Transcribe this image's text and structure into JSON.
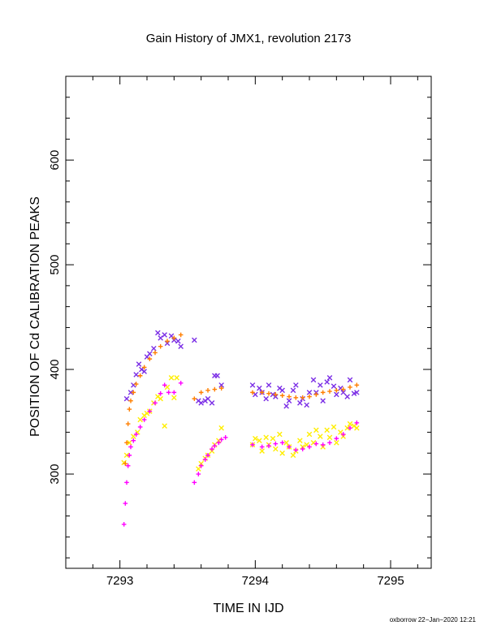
{
  "chart_data": {
    "type": "scatter",
    "title": "Gain History of JMX1, revolution 2173",
    "xlabel": "TIME IN IJD",
    "ylabel": "POSITION OF Cd CALIBRATION PEAKS",
    "xlim": [
      7292.6,
      7295.3
    ],
    "ylim": [
      210,
      680
    ],
    "x_ticks": [
      7293,
      7294,
      7295
    ],
    "y_ticks": [
      300,
      400,
      500,
      600
    ],
    "x_tick_labels": [
      "7293",
      "7294",
      "7295"
    ],
    "y_tick_labels": [
      "300",
      "400",
      "500",
      "600"
    ],
    "grid": false,
    "legend": "none",
    "series": [
      {
        "color": "#7b2ee6",
        "marker": "x",
        "x": [
          7293.05,
          7293.08,
          7293.1,
          7293.12,
          7293.14,
          7293.16,
          7293.18,
          7293.2,
          7293.22,
          7293.25,
          7293.28,
          7293.3,
          7293.33,
          7293.35,
          7293.38,
          7293.4,
          7293.43,
          7293.45,
          7293.55,
          7293.58,
          7293.6,
          7293.63,
          7293.65,
          7293.68,
          7293.7,
          7293.72,
          7293.75,
          7293.98,
          7294.0,
          7294.03,
          7294.05,
          7294.08,
          7294.1,
          7294.13,
          7294.15,
          7294.18,
          7294.2,
          7294.23,
          7294.25,
          7294.28,
          7294.3,
          7294.33,
          7294.35,
          7294.38,
          7294.4,
          7294.43,
          7294.45,
          7294.48,
          7294.5,
          7294.53,
          7294.55,
          7294.58,
          7294.6,
          7294.63,
          7294.65,
          7294.68,
          7294.7,
          7294.73,
          7294.75
        ],
        "y": [
          372,
          378,
          385,
          395,
          405,
          400,
          398,
          412,
          415,
          420,
          435,
          430,
          433,
          425,
          432,
          428,
          427,
          422,
          428,
          370,
          368,
          370,
          372,
          368,
          394,
          394,
          385,
          385,
          376,
          382,
          378,
          372,
          385,
          376,
          374,
          382,
          380,
          365,
          370,
          380,
          385,
          368,
          372,
          366,
          378,
          390,
          378,
          385,
          370,
          388,
          392,
          384,
          376,
          382,
          378,
          374,
          390,
          377,
          378
        ]
      },
      {
        "color": "#ffee00",
        "marker": "x",
        "x": [
          7293.03,
          7293.05,
          7293.07,
          7293.1,
          7293.13,
          7293.15,
          7293.18,
          7293.2,
          7293.22,
          7293.25,
          7293.28,
          7293.3,
          7293.33,
          7293.35,
          7293.38,
          7293.4,
          7293.42,
          7293.58,
          7293.6,
          7293.63,
          7293.65,
          7293.68,
          7293.7,
          7293.73,
          7293.75,
          7293.98,
          7294.0,
          7294.03,
          7294.05,
          7294.08,
          7294.1,
          7294.13,
          7294.15,
          7294.18,
          7294.2,
          7294.23,
          7294.25,
          7294.28,
          7294.3,
          7294.33,
          7294.35,
          7294.38,
          7294.4,
          7294.43,
          7294.45,
          7294.48,
          7294.5,
          7294.53,
          7294.55,
          7294.58,
          7294.6,
          7294.63,
          7294.65,
          7294.68,
          7294.7,
          7294.73,
          7294.75
        ],
        "y": [
          311,
          318,
          330,
          336,
          340,
          352,
          356,
          358,
          360,
          368,
          374,
          372,
          346,
          383,
          392,
          373,
          392,
          305,
          310,
          315,
          318,
          322,
          328,
          332,
          344,
          328,
          334,
          332,
          322,
          335,
          328,
          334,
          324,
          338,
          320,
          330,
          326,
          318,
          322,
          332,
          326,
          328,
          338,
          330,
          342,
          336,
          326,
          342,
          335,
          345,
          330,
          340,
          336,
          344,
          348,
          346,
          344
        ]
      },
      {
        "color": "#ff7f00",
        "marker": "+",
        "x": [
          7293.04,
          7293.05,
          7293.06,
          7293.07,
          7293.08,
          7293.1,
          7293.12,
          7293.15,
          7293.18,
          7293.22,
          7293.26,
          7293.3,
          7293.35,
          7293.4,
          7293.45,
          7293.55,
          7293.6,
          7293.65,
          7293.7,
          7293.75,
          7293.98,
          7294.05,
          7294.1,
          7294.15,
          7294.2,
          7294.25,
          7294.3,
          7294.35,
          7294.4,
          7294.45,
          7294.5,
          7294.55,
          7294.6,
          7294.65,
          7294.7,
          7294.75
        ],
        "y": [
          310,
          330,
          348,
          362,
          370,
          378,
          386,
          394,
          402,
          410,
          416,
          422,
          427,
          430,
          433,
          372,
          378,
          380,
          381,
          382,
          378,
          378,
          377,
          376,
          375,
          374,
          373,
          373,
          374,
          376,
          378,
          379,
          380,
          381,
          383,
          385
        ]
      },
      {
        "color": "#ff00ff",
        "marker": "+",
        "x": [
          7293.03,
          7293.04,
          7293.05,
          7293.06,
          7293.07,
          7293.08,
          7293.1,
          7293.12,
          7293.15,
          7293.18,
          7293.22,
          7293.26,
          7293.3,
          7293.33,
          7293.36,
          7293.4,
          7293.45,
          7293.55,
          7293.58,
          7293.6,
          7293.63,
          7293.65,
          7293.68,
          7293.7,
          7293.73,
          7293.75,
          7293.78,
          7293.98,
          7294.05,
          7294.1,
          7294.15,
          7294.2,
          7294.25,
          7294.3,
          7294.35,
          7294.4,
          7294.45,
          7294.5,
          7294.55,
          7294.6,
          7294.65,
          7294.7,
          7294.75
        ],
        "y": [
          252,
          272,
          292,
          308,
          318,
          326,
          332,
          338,
          345,
          352,
          360,
          368,
          377,
          385,
          378,
          378,
          387,
          292,
          300,
          308,
          314,
          318,
          324,
          327,
          330,
          333,
          335,
          328,
          326,
          327,
          329,
          330,
          326,
          323,
          324,
          326,
          329,
          328,
          330,
          334,
          338,
          344,
          349
        ]
      }
    ],
    "credit": "oxborrow 22−Jan−2020 12:21"
  }
}
